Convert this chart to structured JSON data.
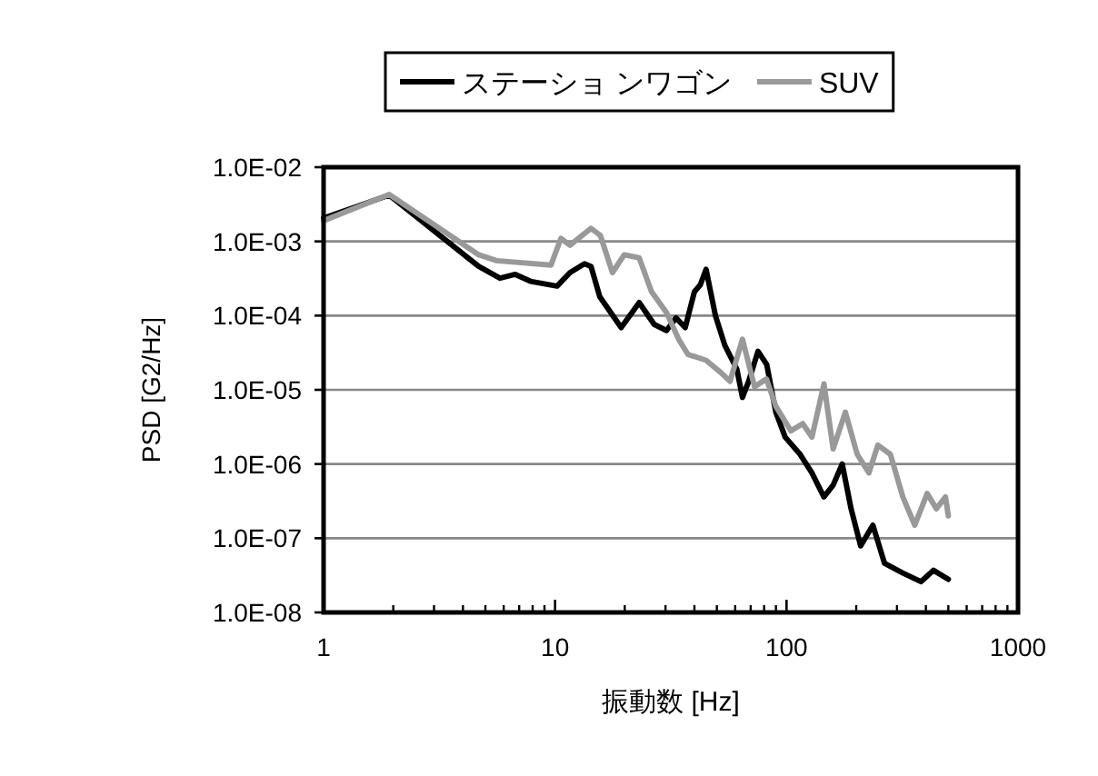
{
  "chart_data": {
    "type": "line",
    "xlabel": "振動数 [Hz]",
    "ylabel": "PSD [G2/Hz]",
    "log": "xy",
    "xlim": [
      1,
      1000
    ],
    "xticks": [
      1,
      10,
      100,
      1000
    ],
    "ylim": [
      1e-08,
      0.01
    ],
    "yticks": [
      {
        "value": 1e-08,
        "label": "1.0E-08"
      },
      {
        "value": 1e-07,
        "label": "1.0E-07"
      },
      {
        "value": 1e-06,
        "label": "1.0E-06"
      },
      {
        "value": 1e-05,
        "label": "1.0E-05"
      },
      {
        "value": 0.0001,
        "label": "1.0E-04"
      },
      {
        "value": 0.001,
        "label": "1.0E-03"
      },
      {
        "value": 0.01,
        "label": "1.0E-02"
      }
    ],
    "grid": "y",
    "legend": "top",
    "marker": "none",
    "line_style": "solid",
    "series": [
      {
        "name": "ステーショ ンワゴン",
        "color": "#000000",
        "x": [
          1,
          1.92,
          4.68,
          5.78,
          6.73,
          7.83,
          10.2,
          11.6,
          13.4,
          14.3,
          15.6,
          19.3,
          23.1,
          26.8,
          30.3,
          33.3,
          36.5,
          40,
          42.4,
          44.9,
          49.3,
          54.1,
          61,
          64.5,
          68.6,
          75.3,
          82.1,
          89.9,
          98.7,
          114.5,
          128.7,
          145,
          159,
          174,
          190,
          209,
          236,
          265,
          318,
          381,
          431,
          500
        ],
        "values": [
          0.00206,
          0.0042,
          0.00046,
          0.00032,
          0.00036,
          0.00029,
          0.00025,
          0.00038,
          0.0005,
          0.00046,
          0.00018,
          6.9e-05,
          0.00015,
          7.6e-05,
          6.3e-05,
          9.3e-05,
          6.9e-05,
          0.00021,
          0.00026,
          0.00042,
          0.0001,
          4e-05,
          1.9e-05,
          7.9e-06,
          1.3e-05,
          3.3e-05,
          2.2e-05,
          5e-06,
          2.3e-06,
          1.35e-06,
          7.6e-07,
          3.6e-07,
          5.2e-07,
          1e-06,
          2.5e-07,
          7.9e-08,
          1.5e-07,
          4.6e-08,
          3.4e-08,
          2.6e-08,
          3.7e-08,
          2.8e-08
        ]
      },
      {
        "name": "SUV",
        "color": "#999999",
        "x": [
          1,
          1.92,
          4.68,
          5.6,
          9.6,
          10.6,
          11.6,
          14.3,
          15.7,
          17.7,
          19.9,
          23.1,
          26.1,
          30.3,
          34.2,
          37.5,
          44.9,
          52.1,
          57,
          64.5,
          72.7,
          81.9,
          89.9,
          104.4,
          117.5,
          128.7,
          145.1,
          159,
          179.5,
          202,
          227,
          248,
          281,
          318,
          358,
          405,
          444,
          486,
          500
        ],
        "values": [
          0.0019,
          0.0043,
          0.00066,
          0.00055,
          0.00048,
          0.0011,
          0.00089,
          0.0015,
          0.0012,
          0.00038,
          0.00066,
          0.0006,
          0.00021,
          0.00011,
          4.8e-05,
          3e-05,
          2.5e-05,
          1.7e-05,
          1.3e-05,
          4.8e-05,
          1.1e-05,
          1.4e-05,
          6e-06,
          2.8e-06,
          3.5e-06,
          2.3e-06,
          1.2e-05,
          1.6e-06,
          5e-06,
          1.35e-06,
          7.6e-07,
          1.8e-06,
          1.35e-06,
          3.6e-07,
          1.5e-07,
          4e-07,
          2.5e-07,
          3.6e-07,
          2e-07
        ]
      }
    ]
  }
}
